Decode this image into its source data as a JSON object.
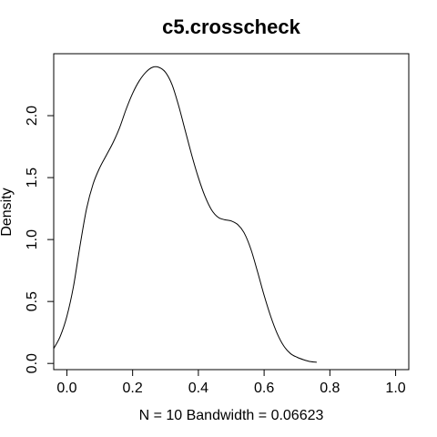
{
  "chart_data": {
    "type": "line",
    "title": "c5.crosscheck",
    "xlabel": "N = 10   Bandwidth = 0.06623",
    "ylabel": "Density",
    "xlim": [
      -0.04,
      1.04
    ],
    "ylim": [
      -0.05,
      2.5
    ],
    "x_ticks": [
      0.0,
      0.2,
      0.4,
      0.6,
      0.8,
      1.0
    ],
    "x_tick_labels": [
      "0.0",
      "0.2",
      "0.4",
      "0.6",
      "0.8",
      "1.0"
    ],
    "y_ticks": [
      0.0,
      0.5,
      1.0,
      1.5,
      2.0
    ],
    "y_tick_labels": [
      "0.0",
      "0.5",
      "1.0",
      "1.5",
      "2.0"
    ],
    "grid": false,
    "series": [
      {
        "x": [
          -0.04,
          -0.02,
          0.0,
          0.02,
          0.04,
          0.06,
          0.08,
          0.1,
          0.12,
          0.14,
          0.16,
          0.18,
          0.2,
          0.22,
          0.24,
          0.26,
          0.28,
          0.3,
          0.32,
          0.34,
          0.36,
          0.38,
          0.4,
          0.42,
          0.44,
          0.46,
          0.48,
          0.5,
          0.52,
          0.54,
          0.56,
          0.58,
          0.6,
          0.62,
          0.64,
          0.66,
          0.68,
          0.7,
          0.72,
          0.74,
          0.76
        ],
        "y": [
          0.12,
          0.22,
          0.38,
          0.62,
          0.95,
          1.25,
          1.45,
          1.58,
          1.68,
          1.78,
          1.9,
          2.05,
          2.18,
          2.28,
          2.35,
          2.39,
          2.39,
          2.35,
          2.25,
          2.08,
          1.88,
          1.68,
          1.5,
          1.35,
          1.24,
          1.18,
          1.16,
          1.15,
          1.12,
          1.05,
          0.92,
          0.74,
          0.55,
          0.38,
          0.24,
          0.14,
          0.08,
          0.05,
          0.03,
          0.015,
          0.01
        ]
      }
    ]
  }
}
